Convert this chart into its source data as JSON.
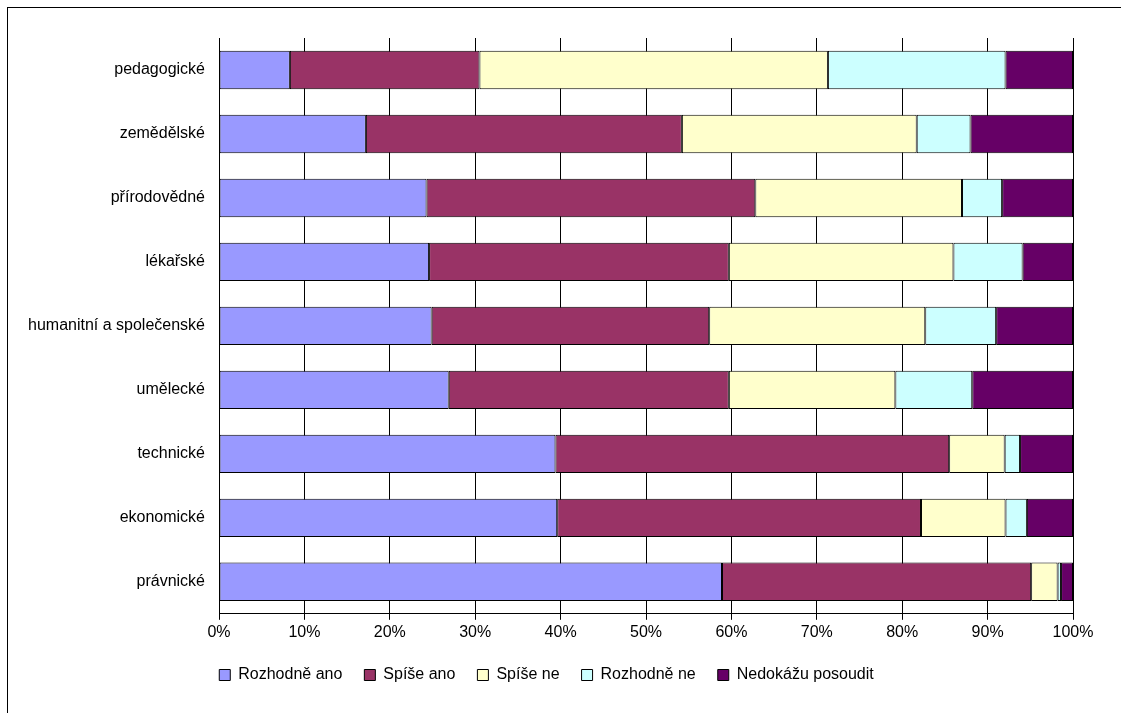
{
  "chart_data": {
    "type": "bar",
    "orientation": "horizontal",
    "stacked": true,
    "categories": [
      "pedagogické",
      "zemědělské",
      "přírodovědné",
      "lékařské",
      "humanitní a společenské",
      "umělecké",
      "technické",
      "ekonomické",
      "právnické"
    ],
    "series": [
      {
        "name": "Rozhodně ano",
        "color": "#9999ff",
        "values": [
          8.3,
          17.2,
          24.3,
          24.6,
          24.9,
          26.9,
          39.4,
          39.6,
          58.9
        ]
      },
      {
        "name": "Spíše ano",
        "color": "#993366",
        "values": [
          22.2,
          37.0,
          38.5,
          35.1,
          32.5,
          32.8,
          46.1,
          42.6,
          36.2
        ]
      },
      {
        "name": "Spíše ne",
        "color": "#ffffcc",
        "values": [
          40.8,
          27.5,
          24.2,
          26.3,
          25.3,
          19.5,
          6.5,
          9.9,
          3.1
        ]
      },
      {
        "name": "Rozhodně ne",
        "color": "#ccffff",
        "values": [
          20.8,
          6.3,
          4.7,
          8.1,
          8.3,
          9.0,
          1.8,
          2.5,
          0.4
        ]
      },
      {
        "name": "Nedokážu posoudit",
        "color": "#660066",
        "values": [
          7.9,
          12.0,
          8.3,
          5.9,
          9.0,
          11.8,
          6.2,
          5.4,
          1.4
        ]
      }
    ],
    "xlim": [
      0,
      100
    ],
    "xticks": [
      {
        "value": 0,
        "label": "0%"
      },
      {
        "value": 10,
        "label": "10%"
      },
      {
        "value": 20,
        "label": "20%"
      },
      {
        "value": 30,
        "label": "30%"
      },
      {
        "value": 40,
        "label": "40%"
      },
      {
        "value": 50,
        "label": "50%"
      },
      {
        "value": 60,
        "label": "60%"
      },
      {
        "value": 70,
        "label": "70%"
      },
      {
        "value": 80,
        "label": "80%"
      },
      {
        "value": 90,
        "label": "90%"
      },
      {
        "value": 100,
        "label": "100%"
      }
    ],
    "grid": "x",
    "legend": "bottom"
  }
}
